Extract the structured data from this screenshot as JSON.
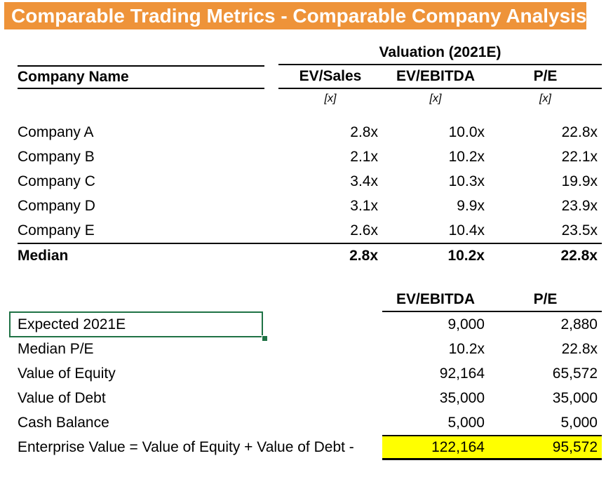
{
  "title": "Comparable Trading Metrics - Comparable Company Analysis",
  "colors": {
    "title_bar_bg": "#EE9339",
    "title_text": "#FFFFFF",
    "highlight_bg": "#FFFF00",
    "selection_border": "#1F7245"
  },
  "comps_table": {
    "group_header": "Valuation (2021E)",
    "name_header": "Company Name",
    "columns": [
      "EV/Sales",
      "EV/EBITDA",
      "P/E"
    ],
    "units": [
      "[x]",
      "[x]",
      "[x]"
    ],
    "rows": [
      {
        "name": "Company A",
        "ev_sales": "2.8x",
        "ev_ebitda": "10.0x",
        "pe": "22.8x"
      },
      {
        "name": "Company B",
        "ev_sales": "2.1x",
        "ev_ebitda": "10.2x",
        "pe": "22.1x"
      },
      {
        "name": "Company C",
        "ev_sales": "3.4x",
        "ev_ebitda": "10.3x",
        "pe": "19.9x"
      },
      {
        "name": "Company D",
        "ev_sales": "3.1x",
        "ev_ebitda": "9.9x",
        "pe": "23.9x"
      },
      {
        "name": "Company E",
        "ev_sales": "2.6x",
        "ev_ebitda": "10.4x",
        "pe": "23.5x"
      }
    ],
    "median": {
      "name": "Median",
      "ev_sales": "2.8x",
      "ev_ebitda": "10.2x",
      "pe": "22.8x"
    }
  },
  "valuation_table": {
    "columns": [
      "EV/EBITDA",
      "P/E"
    ],
    "rows": [
      {
        "label": "Expected 2021E",
        "ev_ebitda": "9,000",
        "pe": "2,880"
      },
      {
        "label": "Median P/E",
        "ev_ebitda": "10.2x",
        "pe": "22.8x"
      },
      {
        "label": "Value of Equity",
        "ev_ebitda": "92,164",
        "pe": "65,572"
      },
      {
        "label": "Value of Debt",
        "ev_ebitda": "35,000",
        "pe": "35,000"
      },
      {
        "label": "Cash Balance",
        "ev_ebitda": "5,000",
        "pe": "5,000"
      },
      {
        "label": "Enterprise Value = Value of Equity + Value of Debt -",
        "ev_ebitda": "122,164",
        "pe": "95,572"
      }
    ]
  }
}
